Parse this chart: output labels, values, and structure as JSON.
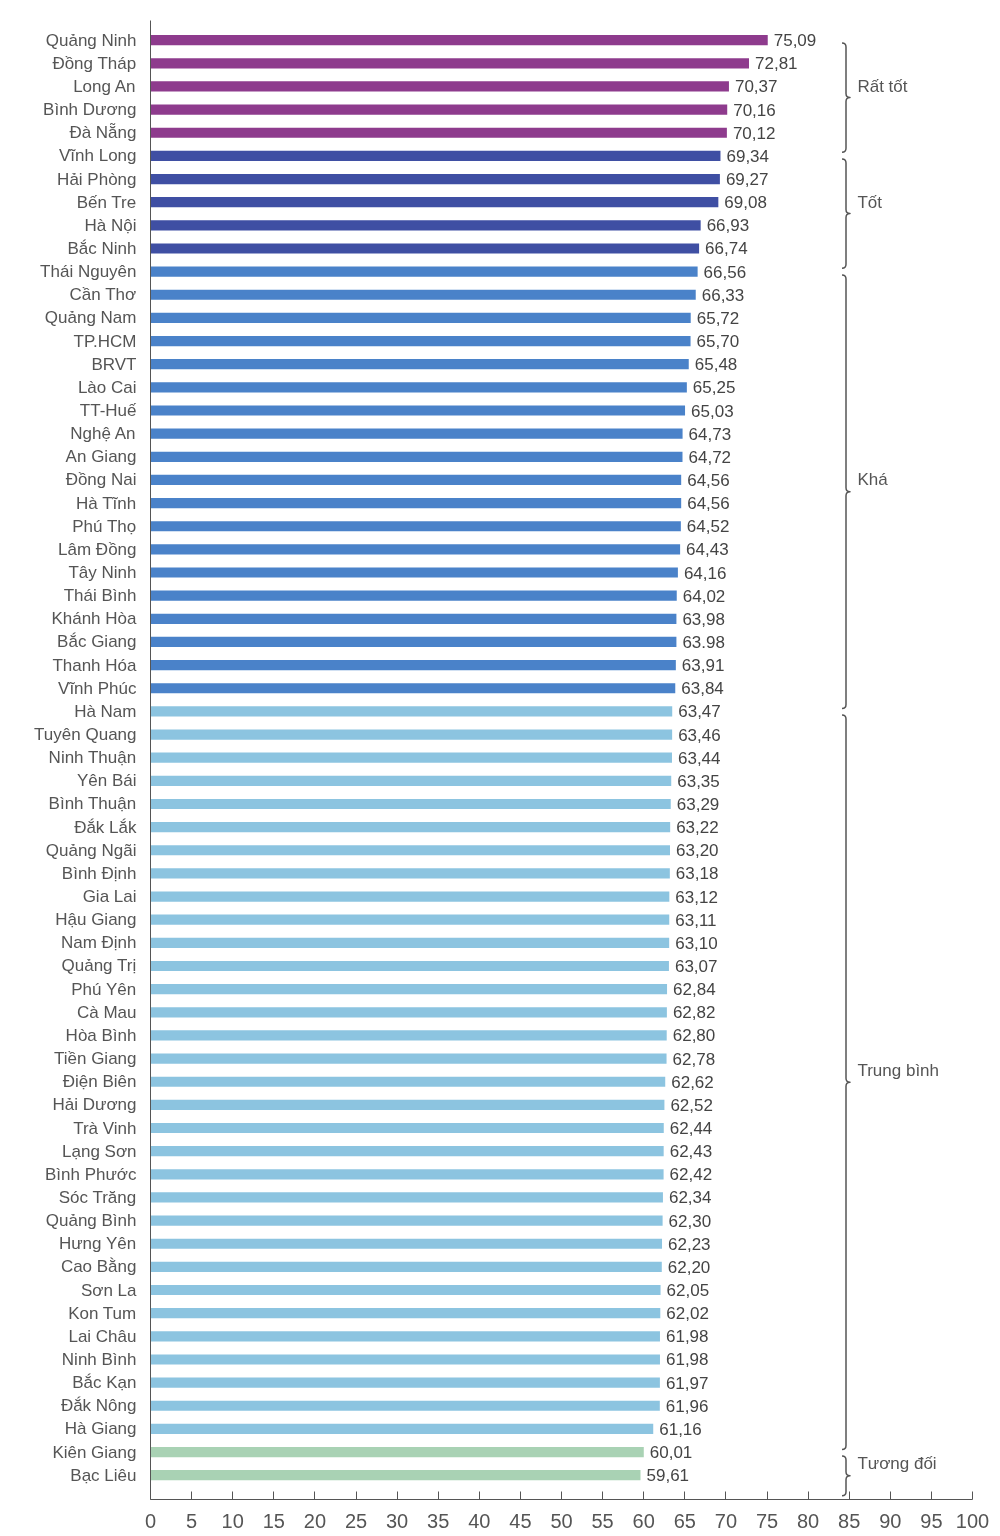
{
  "chart_data": {
    "type": "bar",
    "orientation": "horizontal",
    "categories": [
      "Quảng Ninh",
      "Đồng Tháp",
      "Long An",
      "Bình Dương",
      "Đà Nẵng",
      "Vĩnh Long",
      "Hải Phòng",
      "Bến Tre",
      "Hà Nội",
      "Bắc Ninh",
      "Thái Nguyên",
      "Cần Thơ",
      "Quảng Nam",
      "TP.HCM",
      "BRVT",
      "Lào Cai",
      "TT-Huế",
      "Nghệ An",
      "An Giang",
      "Đồng Nai",
      "Hà Tĩnh",
      "Phú Thọ",
      "Lâm Đồng",
      "Tây Ninh",
      "Thái Bình",
      "Khánh Hòa",
      "Bắc Giang",
      "Thanh Hóa",
      "Vĩnh Phúc",
      "Hà Nam",
      "Tuyên Quang",
      "Ninh Thuận",
      "Yên Bái",
      "Bình Thuận",
      "Đắk Lắk",
      "Quảng Ngãi",
      "Bình Định",
      "Gia Lai",
      "Hậu Giang",
      "Nam Định",
      "Quảng Trị",
      "Phú Yên",
      "Cà Mau",
      "Hòa Bình",
      "Tiền Giang",
      "Điện Biên",
      "Hải Dương",
      "Trà Vinh",
      "Lạng Sơn",
      "Bình Phước",
      "Sóc Trăng",
      "Quảng Bình",
      "Hưng Yên",
      "Cao Bằng",
      "Sơn La",
      "Kon Tum",
      "Lai Châu",
      "Ninh Bình",
      "Bắc Kạn",
      "Đắk Nông",
      "Hà Giang",
      "Kiên Giang",
      "Bạc Liêu"
    ],
    "values": [
      75.09,
      72.81,
      70.37,
      70.16,
      70.12,
      69.34,
      69.27,
      69.08,
      66.93,
      66.74,
      66.56,
      66.33,
      65.72,
      65.7,
      65.48,
      65.25,
      65.03,
      64.73,
      64.72,
      64.56,
      64.56,
      64.52,
      64.43,
      64.16,
      64.02,
      63.98,
      63.98,
      63.91,
      63.84,
      63.47,
      63.46,
      63.44,
      63.35,
      63.29,
      63.22,
      63.2,
      63.18,
      63.12,
      63.11,
      63.1,
      63.07,
      62.84,
      62.82,
      62.8,
      62.78,
      62.62,
      62.52,
      62.44,
      62.43,
      62.42,
      62.34,
      62.3,
      62.23,
      62.2,
      62.05,
      62.02,
      61.98,
      61.98,
      61.97,
      61.96,
      61.16,
      60.01,
      59.61
    ],
    "value_labels": [
      "75,09",
      "72,81",
      "70,37",
      "70,16",
      "70,12",
      "69,34",
      "69,27",
      "69,08",
      "66,93",
      "66,74",
      "66,56",
      "66,33",
      "65,72",
      "65,70",
      "65,48",
      "65,25",
      "65,03",
      "64,73",
      "64,72",
      "64,56",
      "64,56",
      "64,52",
      "64,43",
      "64,16",
      "64,02",
      "63,98",
      "63.98",
      "63,91",
      "63,84",
      "63,47",
      "63,46",
      "63,44",
      "63,35",
      "63,29",
      "63,22",
      "63,20",
      "63,18",
      "63,12",
      "63,11",
      "63,10",
      "63,07",
      "62,84",
      "62,82",
      "62,80",
      "62,78",
      "62,62",
      "62,52",
      "62,44",
      "62,43",
      "62,42",
      "62,34",
      "62,30",
      "62,23",
      "62,20",
      "62,05",
      "62,02",
      "61,98",
      "61,98",
      "61,97",
      "61,96",
      "61,16",
      "60,01",
      "59,61"
    ],
    "colors": [
      "#8e3b8d",
      "#8e3b8d",
      "#8e3b8d",
      "#8e3b8d",
      "#8e3b8d",
      "#3f4fa3",
      "#3f4fa3",
      "#3f4fa3",
      "#3f4fa3",
      "#3f4fa3",
      "#4a82c9",
      "#4a82c9",
      "#4a82c9",
      "#4a82c9",
      "#4a82c9",
      "#4a82c9",
      "#4a82c9",
      "#4a82c9",
      "#4a82c9",
      "#4a82c9",
      "#4a82c9",
      "#4a82c9",
      "#4a82c9",
      "#4a82c9",
      "#4a82c9",
      "#4a82c9",
      "#4a82c9",
      "#4a82c9",
      "#4a82c9",
      "#8cc4e0",
      "#8cc4e0",
      "#8cc4e0",
      "#8cc4e0",
      "#8cc4e0",
      "#8cc4e0",
      "#8cc4e0",
      "#8cc4e0",
      "#8cc4e0",
      "#8cc4e0",
      "#8cc4e0",
      "#8cc4e0",
      "#8cc4e0",
      "#8cc4e0",
      "#8cc4e0",
      "#8cc4e0",
      "#8cc4e0",
      "#8cc4e0",
      "#8cc4e0",
      "#8cc4e0",
      "#8cc4e0",
      "#8cc4e0",
      "#8cc4e0",
      "#8cc4e0",
      "#8cc4e0",
      "#8cc4e0",
      "#8cc4e0",
      "#8cc4e0",
      "#8cc4e0",
      "#8cc4e0",
      "#8cc4e0",
      "#8cc4e0",
      "#a9d2b4",
      "#a9d2b4"
    ],
    "xlim": [
      0,
      100
    ],
    "xticks": [
      0,
      5,
      10,
      15,
      20,
      25,
      30,
      35,
      40,
      45,
      50,
      55,
      60,
      65,
      70,
      75,
      80,
      85,
      90,
      95,
      100
    ],
    "annotations": [
      "Rất tốt",
      "Tốt",
      "Khá",
      "Trung bình",
      "Tương đối"
    ]
  }
}
